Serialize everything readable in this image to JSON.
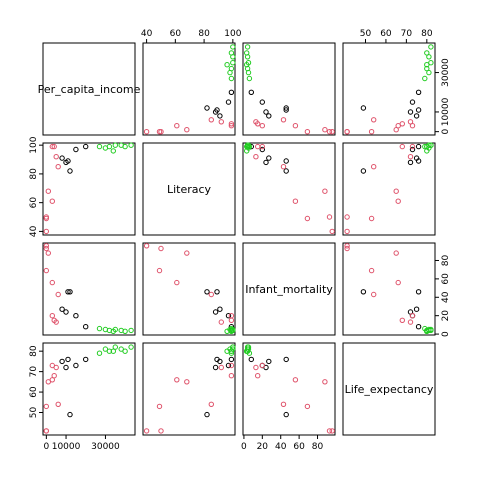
{
  "chart_data": {
    "type": "scatter",
    "kind": "scatterplot-matrix",
    "variables": [
      "Per_capita_income",
      "Literacy",
      "Infant_mortality",
      "Life_expectancy"
    ],
    "group_colors": [
      "#000000",
      "#df536b",
      "#22cc22"
    ],
    "points": [
      {
        "group": 0,
        "values": [
          11000,
          89,
          46,
          76
        ]
      },
      {
        "group": 0,
        "values": [
          8000,
          91,
          27,
          75
        ]
      },
      {
        "group": 0,
        "values": [
          10000,
          88,
          24,
          72
        ]
      },
      {
        "group": 0,
        "values": [
          20000,
          99,
          8,
          76
        ]
      },
      {
        "group": 0,
        "values": [
          15000,
          97,
          20,
          73
        ]
      },
      {
        "group": 0,
        "values": [
          12000,
          82,
          46,
          49
        ]
      },
      {
        "group": 1,
        "values": [
          0,
          49,
          69,
          53
        ]
      },
      {
        "group": 1,
        "values": [
          0,
          50,
          93,
          41
        ]
      },
      {
        "group": 1,
        "values": [
          0,
          40,
          96,
          41
        ]
      },
      {
        "group": 1,
        "values": [
          5000,
          92,
          13,
          72
        ]
      },
      {
        "group": 1,
        "values": [
          3000,
          61,
          56,
          66
        ]
      },
      {
        "group": 1,
        "values": [
          6000,
          85,
          43,
          54
        ]
      },
      {
        "group": 1,
        "values": [
          3000,
          99,
          20,
          73
        ]
      },
      {
        "group": 1,
        "values": [
          1000,
          68,
          88,
          65
        ]
      },
      {
        "group": 1,
        "values": [
          4000,
          99,
          15,
          68
        ]
      },
      {
        "group": 2,
        "values": [
          35000,
          100,
          5,
          82
        ]
      },
      {
        "group": 2,
        "values": [
          32000,
          99,
          4,
          80
        ]
      },
      {
        "group": 2,
        "values": [
          40000,
          99,
          3,
          80
        ]
      },
      {
        "group": 2,
        "values": [
          38000,
          100,
          4,
          81
        ]
      },
      {
        "group": 2,
        "values": [
          30000,
          98,
          5,
          81
        ]
      },
      {
        "group": 2,
        "values": [
          27000,
          99,
          6,
          79
        ]
      },
      {
        "group": 2,
        "values": [
          43000,
          100,
          4,
          82
        ]
      },
      {
        "group": 2,
        "values": [
          34000,
          96,
          3,
          80
        ]
      }
    ],
    "axis_ranges": [
      [
        -1700,
        45000
      ],
      [
        37.5,
        101.5
      ],
      [
        -1,
        99
      ],
      [
        39,
        84
      ]
    ],
    "ticks": [
      {
        "values": [
          0,
          10000,
          30000
        ],
        "labels": [
          "0",
          "10000",
          "30000"
        ]
      },
      {
        "values": [
          40,
          60,
          80,
          100
        ],
        "labels": [
          "40",
          "60",
          "80",
          "100"
        ]
      },
      {
        "values": [
          0,
          20,
          40,
          60,
          80
        ],
        "labels": [
          "0",
          "20",
          "40",
          "60",
          "80"
        ]
      },
      {
        "values": [
          50,
          60,
          70,
          80
        ],
        "labels": [
          "50",
          "60",
          "70",
          "80"
        ]
      }
    ],
    "grid": false,
    "legend": "none"
  }
}
